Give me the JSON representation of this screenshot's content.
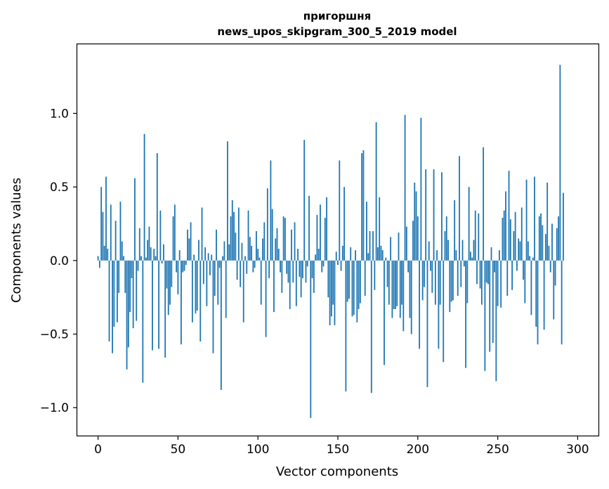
{
  "chart_data": {
    "type": "bar",
    "title": "пригоршня",
    "subtitle": "news_upos_skipgram_300_5_2019 model",
    "xlabel": "Vector components",
    "ylabel": "Components values",
    "xlim": [
      -13,
      313
    ],
    "ylim": [
      -1.19,
      1.47
    ],
    "xticks": [
      0,
      50,
      100,
      150,
      200,
      250,
      300
    ],
    "yticks": [
      -1.0,
      -0.5,
      0.0,
      0.5,
      1.0
    ],
    "ytick_labels": [
      "−1.0",
      "−0.5",
      "0.0",
      "0.5",
      "1.0"
    ],
    "bar_color": "#1f77b4",
    "grid": false,
    "values": [
      0.03,
      -0.05,
      0.5,
      0.33,
      0.1,
      0.57,
      0.08,
      -0.55,
      0.38,
      -0.63,
      -0.45,
      0.27,
      -0.42,
      -0.22,
      0.4,
      0.13,
      0.03,
      -0.22,
      -0.74,
      -0.59,
      -0.35,
      -0.12,
      -0.46,
      0.56,
      -0.41,
      -0.07,
      0.22,
      0.03,
      -0.83,
      0.86,
      0.02,
      0.14,
      0.23,
      0.09,
      -0.61,
      0.08,
      0.03,
      0.73,
      -0.6,
      0.34,
      -0.02,
      0.11,
      -0.66,
      -0.19,
      -0.37,
      -0.3,
      -0.18,
      0.3,
      0.38,
      -0.08,
      -0.23,
      0.07,
      -0.57,
      -0.08,
      -0.07,
      -0.03,
      0.21,
      0.15,
      0.26,
      -0.42,
      0.04,
      -0.36,
      -0.34,
      0.14,
      -0.55,
      0.36,
      -0.16,
      0.09,
      -0.31,
      0.05,
      -0.1,
      0.04,
      -0.63,
      -0.24,
      0.21,
      -0.3,
      -0.05,
      -0.88,
      0.03,
      0.13,
      -0.39,
      0.81,
      0.11,
      0.3,
      0.41,
      0.33,
      0.19,
      -0.13,
      0.36,
      -0.18,
      0.12,
      -0.42,
      0.03,
      -0.09,
      0.34,
      0.16,
      0.1,
      -0.08,
      -0.05,
      0.2,
      0.08,
      0.02,
      -0.3,
      0.15,
      0.26,
      -0.52,
      0.49,
      -0.12,
      0.68,
      0.35,
      -0.35,
      0.15,
      0.22,
      0.08,
      -0.08,
      -0.22,
      0.3,
      0.29,
      -0.09,
      -0.15,
      -0.33,
      0.21,
      -0.15,
      0.26,
      -0.31,
      0.08,
      -0.11,
      -0.25,
      -0.12,
      0.82,
      -0.15,
      -0.04,
      0.44,
      -1.07,
      -0.12,
      -0.22,
      0.04,
      0.31,
      0.08,
      0.38,
      -0.08,
      -0.04,
      0.29,
      0.43,
      -0.25,
      -0.44,
      -0.38,
      -0.3,
      -0.44,
      0.06,
      -0.03,
      0.68,
      -0.07,
      0.1,
      0.5,
      -0.89,
      -0.28,
      -0.26,
      0.09,
      -0.38,
      -0.37,
      0.07,
      -0.42,
      -0.33,
      -0.29,
      0.73,
      0.75,
      -0.24,
      0.4,
      0.05,
      0.2,
      -0.9,
      0.2,
      -0.2,
      0.94,
      0.09,
      0.43,
      0.1,
      0.07,
      -0.71,
      0.02,
      -0.18,
      -0.3,
      0.16,
      -0.39,
      -0.33,
      -0.33,
      -0.31,
      0.19,
      -0.39,
      -0.3,
      -0.48,
      0.99,
      0.23,
      -0.08,
      -0.39,
      -0.5,
      0.27,
      0.53,
      0.47,
      0.3,
      -0.6,
      0.97,
      -0.27,
      -0.18,
      0.62,
      -0.86,
      0.13,
      -0.07,
      -0.22,
      0.62,
      -0.3,
      0.07,
      -0.6,
      -0.3,
      0.6,
      -0.69,
      0.2,
      0.3,
      0.14,
      -0.35,
      -0.28,
      -0.27,
      0.41,
      0.07,
      -0.24,
      0.71,
      -0.18,
      0.14,
      -0.04,
      -0.73,
      -0.29,
      0.5,
      0.06,
      0.02,
      0.14,
      0.34,
      -0.16,
      0.32,
      -0.19,
      -0.3,
      0.77,
      -0.75,
      -0.15,
      -0.16,
      -0.62,
      0.09,
      -0.56,
      -0.08,
      -0.82,
      -0.31,
      0.07,
      -0.32,
      0.29,
      0.34,
      0.47,
      -0.24,
      0.61,
      0.28,
      -0.2,
      0.2,
      0.33,
      -0.07,
      0.15,
      0.13,
      0.36,
      -0.13,
      -0.29,
      0.55,
      0.13,
      0.03,
      -0.37,
      0.02,
      0.57,
      -0.45,
      -0.57,
      0.3,
      0.32,
      0.24,
      -0.47,
      0.18,
      0.53,
      0.1,
      -0.08,
      0.25,
      -0.4,
      -0.17,
      0.22,
      0.3,
      1.33,
      -0.57,
      0.46
    ]
  }
}
